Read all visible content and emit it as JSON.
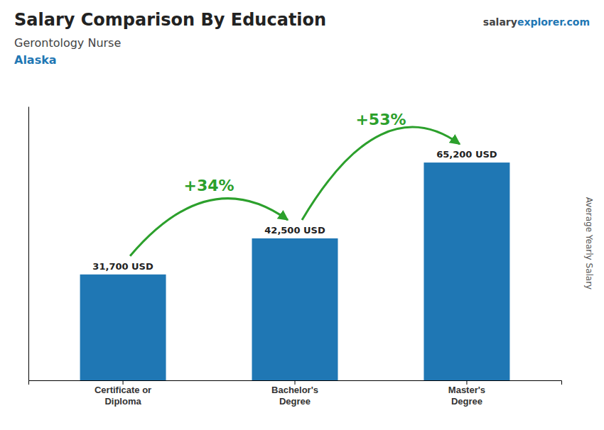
{
  "chart_data": {
    "type": "bar",
    "title": "Salary Comparison By Education",
    "subtitle": [
      "Gerontology Nurse",
      "Alaska"
    ],
    "watermark": [
      "salary",
      "explorer.com"
    ],
    "y_label": "Average Yearly Salary",
    "categories": [
      "Certificate or\nDiploma",
      "Bachelor's\nDegree",
      "Master's\nDegree"
    ],
    "values": [
      31700,
      42500,
      65200
    ],
    "value_labels": [
      "31,700 USD",
      "42,500 USD",
      "65,200 USD"
    ],
    "data_labels": true,
    "annotations": [
      "+34%",
      "+53%"
    ],
    "ylim": [
      0,
      82000
    ],
    "tick_labels": "x",
    "grid": false
  }
}
